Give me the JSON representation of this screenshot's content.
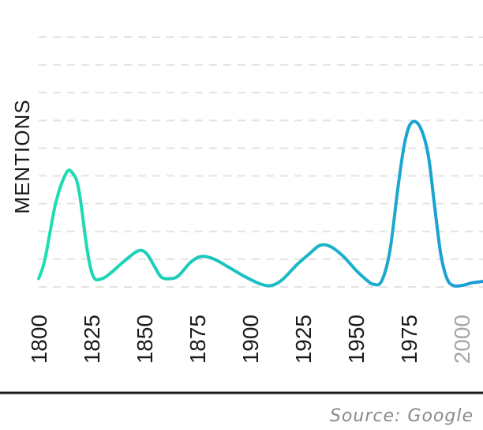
{
  "chart_data": {
    "type": "line",
    "ylabel": "MENTIONS",
    "xlabel": "",
    "title": "",
    "x_ticks": [
      {
        "label": "1800",
        "value": 1800,
        "muted": false
      },
      {
        "label": "1825",
        "value": 1825,
        "muted": false
      },
      {
        "label": "1850",
        "value": 1850,
        "muted": false
      },
      {
        "label": "1875",
        "value": 1875,
        "muted": false
      },
      {
        "label": "1900",
        "value": 1900,
        "muted": false
      },
      {
        "label": "1925",
        "value": 1925,
        "muted": false
      },
      {
        "label": "1950",
        "value": 1950,
        "muted": false
      },
      {
        "label": "1975",
        "value": 1975,
        "muted": false
      },
      {
        "label": "2000",
        "value": 2000,
        "muted": true
      }
    ],
    "xlim": [
      1800,
      2010
    ],
    "ylim": [
      0,
      9
    ],
    "grid": "horizontal dashed",
    "y_gridlines": [
      0,
      1,
      2,
      3,
      4,
      5,
      6,
      7,
      8,
      9
    ],
    "series": [
      {
        "color_start": "#1ee0b0",
        "color_end": "#1a9bd6",
        "points": [
          [
            1800,
            0.3
          ],
          [
            1803,
            1.0
          ],
          [
            1808,
            3.0
          ],
          [
            1813,
            4.1
          ],
          [
            1816,
            4.1
          ],
          [
            1819,
            3.5
          ],
          [
            1823,
            1.3
          ],
          [
            1826,
            0.35
          ],
          [
            1830,
            0.3
          ],
          [
            1834,
            0.5
          ],
          [
            1840,
            0.9
          ],
          [
            1847,
            1.3
          ],
          [
            1851,
            1.2
          ],
          [
            1855,
            0.7
          ],
          [
            1858,
            0.35
          ],
          [
            1862,
            0.3
          ],
          [
            1866,
            0.4
          ],
          [
            1872,
            0.9
          ],
          [
            1877,
            1.1
          ],
          [
            1883,
            1.0
          ],
          [
            1890,
            0.7
          ],
          [
            1898,
            0.35
          ],
          [
            1905,
            0.1
          ],
          [
            1910,
            0.05
          ],
          [
            1915,
            0.25
          ],
          [
            1922,
            0.8
          ],
          [
            1928,
            1.2
          ],
          [
            1933,
            1.5
          ],
          [
            1938,
            1.45
          ],
          [
            1944,
            1.1
          ],
          [
            1950,
            0.6
          ],
          [
            1955,
            0.25
          ],
          [
            1958,
            0.1
          ],
          [
            1962,
            0.2
          ],
          [
            1966,
            1.3
          ],
          [
            1970,
            3.7
          ],
          [
            1973,
            5.2
          ],
          [
            1976,
            5.9
          ],
          [
            1980,
            5.8
          ],
          [
            1984,
            4.8
          ],
          [
            1987,
            3.0
          ],
          [
            1990,
            1.2
          ],
          [
            1993,
            0.3
          ],
          [
            1996,
            0.05
          ],
          [
            2000,
            0.05
          ],
          [
            2005,
            0.15
          ],
          [
            2010,
            0.2
          ]
        ]
      }
    ]
  },
  "source": "Source: Google"
}
